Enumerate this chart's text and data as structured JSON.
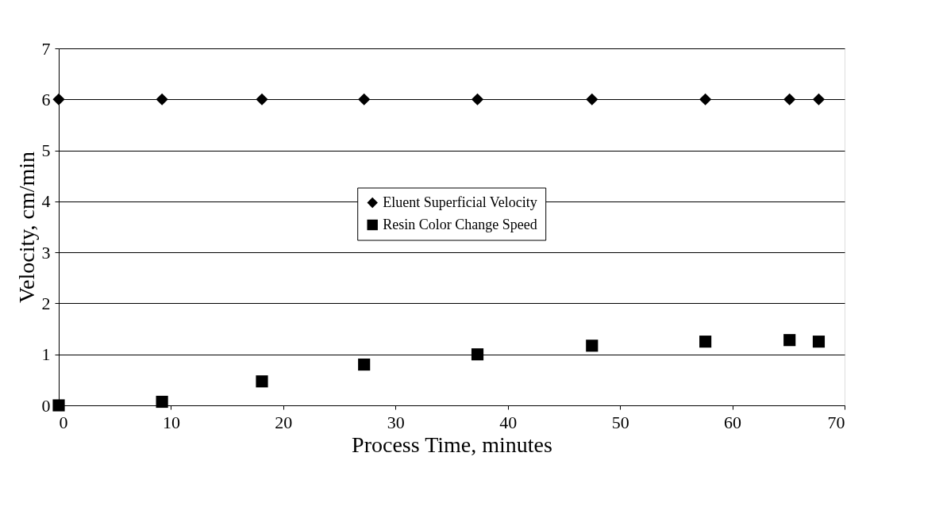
{
  "chart_data": {
    "type": "scatter",
    "xlabel": "Process Time, minutes",
    "ylabel": "Velocity, cm/min",
    "x": [
      0,
      9.2,
      18.1,
      27.2,
      37.3,
      47.5,
      57.6,
      65.1,
      67.7
    ],
    "series": [
      {
        "name": "Eluent Superficial Velocity",
        "color": "#000000",
        "marker": "diamond",
        "values": [
          6,
          6,
          6,
          6,
          6,
          6,
          6,
          6,
          6
        ]
      },
      {
        "name": "Resin Color Change Speed",
        "color": "#000000",
        "marker": "square",
        "values": [
          0,
          0.07,
          0.47,
          0.8,
          1.0,
          1.17,
          1.25,
          1.28,
          1.25
        ]
      }
    ],
    "xlim": [
      0,
      70
    ],
    "xticks": [
      0,
      10,
      20,
      30,
      40,
      50,
      60,
      70
    ],
    "ylim": [
      0,
      7
    ],
    "yticks": [
      0,
      1,
      2,
      3,
      4,
      5,
      6,
      7
    ],
    "grid": "y",
    "legend": "center"
  }
}
